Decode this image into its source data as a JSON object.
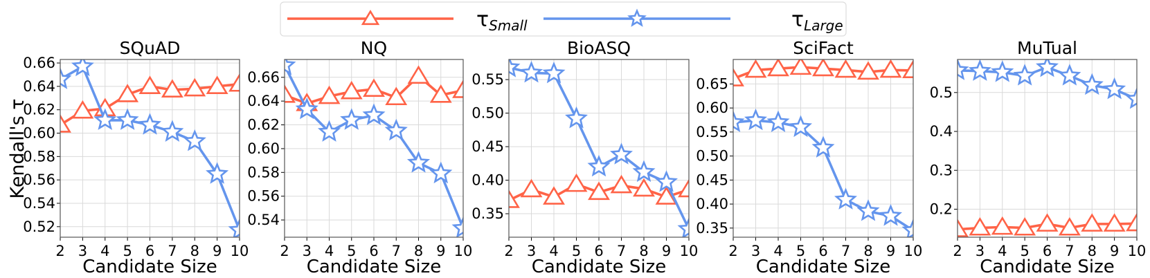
{
  "colors": {
    "small": "#FF6347",
    "large": "#6495ED",
    "grid": "#d9d9d9",
    "axis": "#555555"
  },
  "legend": [
    {
      "symbol": "τ",
      "sub": "Small",
      "marker": "triangle"
    },
    {
      "symbol": "τ",
      "sub": "Large",
      "marker": "star"
    }
  ],
  "chart_data": [
    {
      "type": "line",
      "title": "SQuAD",
      "xlabel": "Candidate Size",
      "ylabel": "Kendall's τ",
      "x": [
        2,
        3,
        4,
        5,
        6,
        7,
        8,
        9,
        10
      ],
      "xlim": [
        2,
        10
      ],
      "ylim": [
        0.511,
        0.663
      ],
      "yticks": [
        "0.52",
        "0.54",
        "0.56",
        "0.58",
        "0.60",
        "0.62",
        "0.64",
        "0.66"
      ],
      "grid": true,
      "series": [
        {
          "name": "τ_Small",
          "values": [
            0.607,
            0.619,
            0.621,
            0.633,
            0.64,
            0.637,
            0.638,
            0.64,
            0.642
          ]
        },
        {
          "name": "τ_Large",
          "values": [
            0.646,
            0.657,
            0.611,
            0.611,
            0.607,
            0.601,
            0.593,
            0.565,
            0.517
          ]
        }
      ]
    },
    {
      "type": "line",
      "title": "NQ",
      "xlabel": "Candidate Size",
      "ylabel": "",
      "x": [
        2,
        3,
        4,
        5,
        6,
        7,
        8,
        9,
        10
      ],
      "xlim": [
        2,
        10
      ],
      "ylim": [
        0.5255,
        0.675
      ],
      "yticks": [
        "0.54",
        "0.56",
        "0.58",
        "0.60",
        "0.62",
        "0.64",
        "0.66"
      ],
      "grid": true,
      "series": [
        {
          "name": "τ_Small",
          "values": [
            0.645,
            0.638,
            0.644,
            0.648,
            0.65,
            0.643,
            0.661,
            0.645,
            0.649
          ]
        },
        {
          "name": "τ_Large",
          "values": [
            0.67,
            0.633,
            0.614,
            0.624,
            0.628,
            0.615,
            0.588,
            0.579,
            0.533
          ]
        }
      ]
    },
    {
      "type": "line",
      "title": "BioASQ",
      "xlabel": "Candidate Size",
      "ylabel": "",
      "x": [
        2,
        3,
        4,
        5,
        6,
        7,
        8,
        9,
        10
      ],
      "xlim": [
        2,
        10
      ],
      "ylim": [
        0.315,
        0.58
      ],
      "yticks": [
        "0.35",
        "0.40",
        "0.45",
        "0.50",
        "0.55"
      ],
      "grid": true,
      "series": [
        {
          "name": "τ_Small",
          "values": [
            0.37,
            0.386,
            0.375,
            0.394,
            0.382,
            0.392,
            0.387,
            0.375,
            0.386
          ]
        },
        {
          "name": "τ_Large",
          "values": [
            0.568,
            0.56,
            0.559,
            0.492,
            0.42,
            0.438,
            0.412,
            0.397,
            0.327
          ]
        }
      ]
    },
    {
      "type": "line",
      "title": "SciFact",
      "xlabel": "Candidate Size",
      "ylabel": "",
      "x": [
        2,
        3,
        4,
        5,
        6,
        7,
        8,
        9,
        10
      ],
      "xlim": [
        2,
        10
      ],
      "ylim": [
        0.331,
        0.701
      ],
      "yticks": [
        "0.35",
        "0.40",
        "0.45",
        "0.50",
        "0.55",
        "0.60",
        "0.65"
      ],
      "grid": true,
      "series": [
        {
          "name": "τ_Small",
          "values": [
            0.661,
            0.679,
            0.682,
            0.685,
            0.682,
            0.679,
            0.675,
            0.679,
            0.678
          ]
        },
        {
          "name": "τ_Large",
          "values": [
            0.57,
            0.574,
            0.57,
            0.56,
            0.517,
            0.409,
            0.385,
            0.375,
            0.345
          ]
        }
      ]
    },
    {
      "type": "line",
      "title": "MuTual",
      "xlabel": "Candidate Size",
      "ylabel": "",
      "x": [
        2,
        3,
        4,
        5,
        6,
        7,
        8,
        9,
        10
      ],
      "xlim": [
        2,
        10
      ],
      "ylim": [
        0.128,
        0.585
      ],
      "yticks": [
        "0.2",
        "0.3",
        "0.4",
        "0.5"
      ],
      "grid": true,
      "series": [
        {
          "name": "τ_Small",
          "values": [
            0.148,
            0.152,
            0.154,
            0.152,
            0.162,
            0.152,
            0.162,
            0.162,
            0.163
          ]
        },
        {
          "name": "τ_Large",
          "values": [
            0.557,
            0.555,
            0.552,
            0.543,
            0.565,
            0.543,
            0.519,
            0.508,
            0.483
          ]
        }
      ]
    }
  ]
}
